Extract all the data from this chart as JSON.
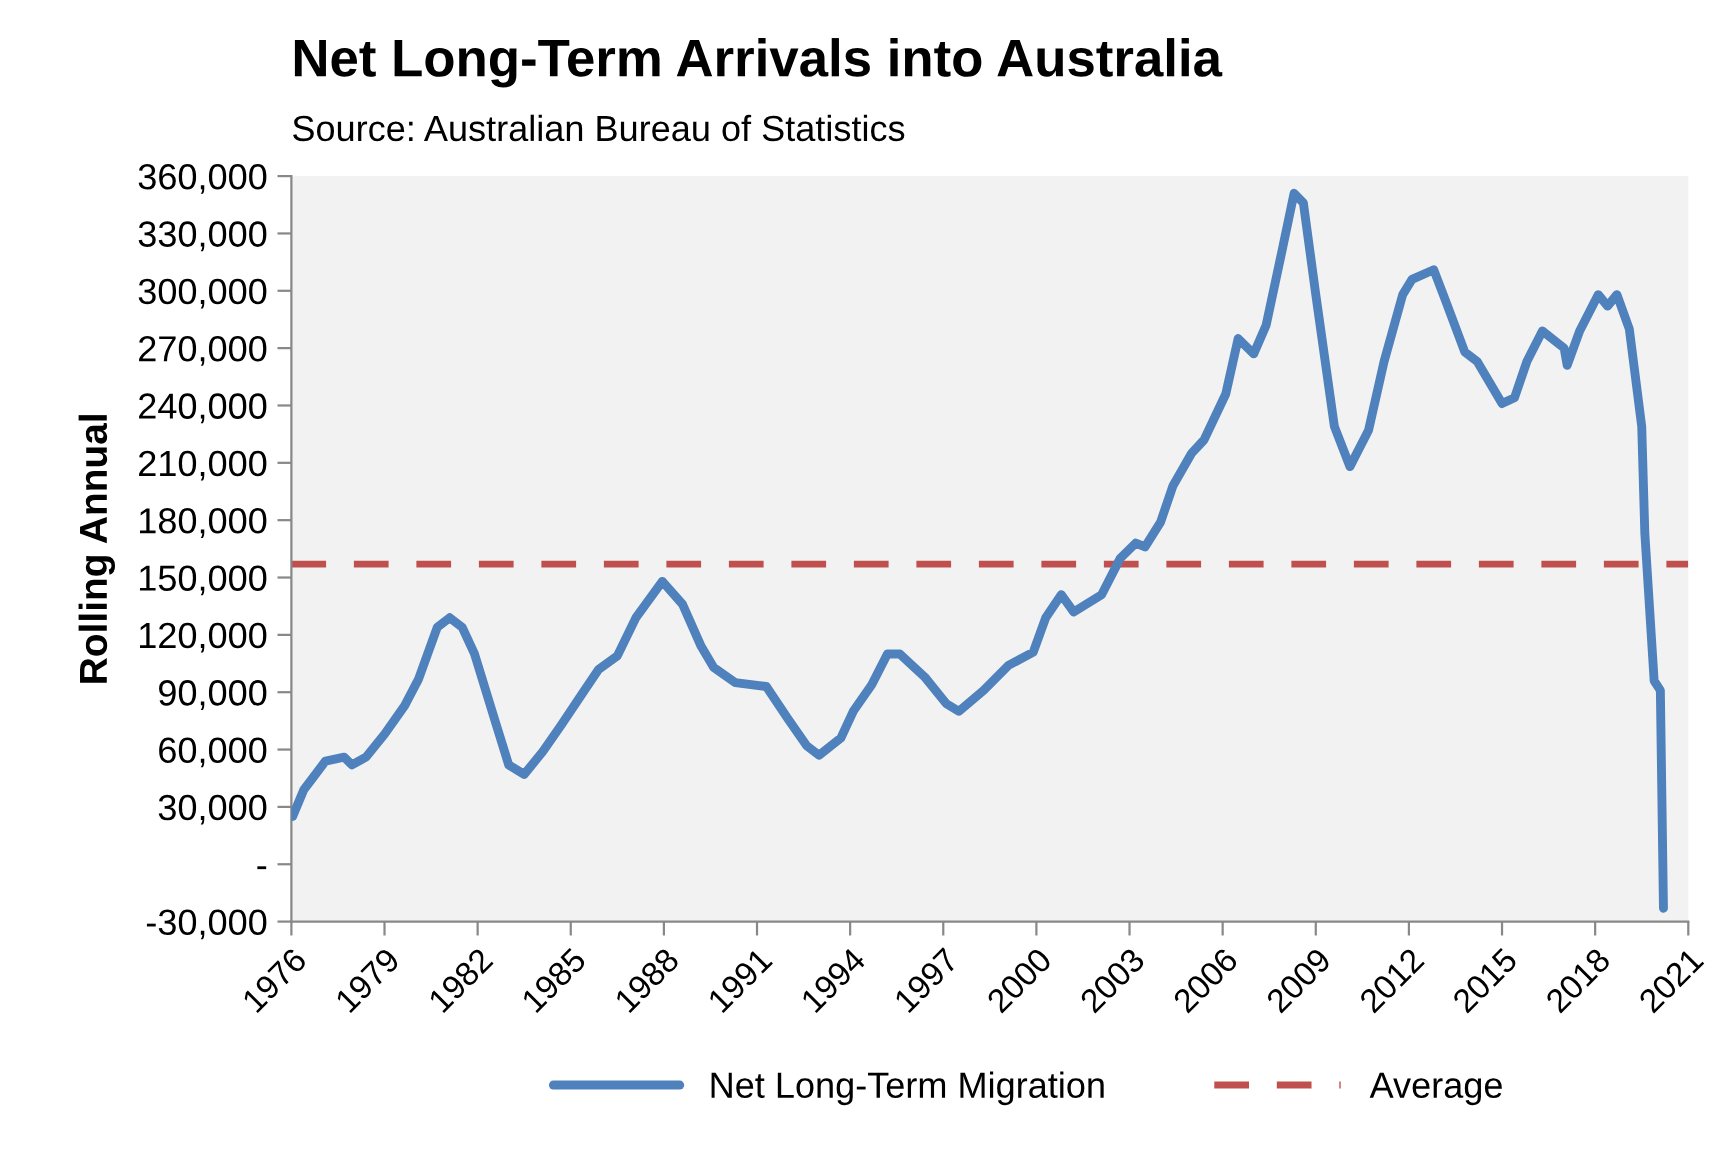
{
  "chart_data": {
    "type": "line",
    "title": "Net Long-Term Arrivals into Australia",
    "subtitle": "Source: Australian Bureau of Statistics",
    "ylabel": "Rolling Annual",
    "series": [
      {
        "name": "Net Long-Term Migration",
        "color": "#4f81bd",
        "x": [
          1976.04,
          1976.4,
          1977.1,
          1977.7,
          1977.95,
          1978.4,
          1979.0,
          1979.65,
          1980.1,
          1980.7,
          1981.1,
          1981.5,
          1981.9,
          1982.6,
          1983.0,
          1983.5,
          1984.1,
          1984.7,
          1985.4,
          1985.9,
          1986.5,
          1987.1,
          1987.95,
          1988.6,
          1989.2,
          1989.6,
          1990.3,
          1991.3,
          1992.0,
          1992.6,
          1993.0,
          1993.7,
          1994.1,
          1994.7,
          1995.2,
          1995.6,
          1996.4,
          1997.1,
          1997.5,
          1998.3,
          1999.1,
          1999.9,
          2000.3,
          2000.8,
          2001.2,
          2002.1,
          2002.7,
          2003.2,
          2003.5,
          2004.0,
          2004.4,
          2005.0,
          2005.4,
          2006.1,
          2006.5,
          2007.0,
          2007.4,
          2007.9,
          2008.3,
          2008.6,
          2009.0,
          2009.6,
          2010.1,
          2010.7,
          2011.2,
          2011.8,
          2012.1,
          2012.8,
          2013.2,
          2013.8,
          2014.2,
          2015.0,
          2015.4,
          2015.8,
          2016.3,
          2017.0,
          2017.1,
          2017.5,
          2018.1,
          2018.4,
          2018.7,
          2019.1,
          2019.5,
          2019.6,
          2019.9,
          2020.1,
          2020.2
        ],
        "values": [
          25000,
          39000,
          54000,
          56000,
          52000,
          56000,
          68000,
          83000,
          97000,
          124000,
          129000,
          124000,
          110000,
          73000,
          52000,
          47000,
          59000,
          73000,
          90000,
          102000,
          109000,
          129000,
          148000,
          136000,
          114000,
          103000,
          95000,
          93000,
          76000,
          62000,
          57000,
          66000,
          80000,
          94000,
          110000,
          110000,
          98000,
          84000,
          80000,
          91000,
          104000,
          111000,
          129000,
          141000,
          132000,
          141000,
          160000,
          168000,
          166000,
          179000,
          198000,
          215000,
          222000,
          246000,
          275000,
          267000,
          282000,
          320000,
          351000,
          346000,
          298000,
          229000,
          208000,
          227000,
          263000,
          298000,
          306000,
          311000,
          294000,
          268000,
          263000,
          241000,
          244000,
          263000,
          279000,
          270000,
          261000,
          279000,
          298000,
          292000,
          298000,
          280000,
          229000,
          173000,
          96000,
          91000,
          -23000
        ]
      }
    ],
    "ref_lines": [
      {
        "axis": "y",
        "value": 157000,
        "label": "Average",
        "color": "#c0504d",
        "line_style": "dashed"
      }
    ],
    "xlim": [
      1976,
      2021
    ],
    "xticks": [
      1976,
      1979,
      1982,
      1985,
      1988,
      1991,
      1994,
      1997,
      2000,
      2003,
      2006,
      2009,
      2012,
      2015,
      2018,
      2021
    ],
    "ylim": [
      -30000,
      360000
    ],
    "yticks": [
      {
        "value": -30000,
        "label": "-30,000"
      },
      {
        "value": 0,
        "label": "-"
      },
      {
        "value": 30000,
        "label": "30,000"
      },
      {
        "value": 60000,
        "label": "60,000"
      },
      {
        "value": 90000,
        "label": "90,000"
      },
      {
        "value": 120000,
        "label": "120,000"
      },
      {
        "value": 150000,
        "label": "150,000"
      },
      {
        "value": 180000,
        "label": "180,000"
      },
      {
        "value": 210000,
        "label": "210,000"
      },
      {
        "value": 240000,
        "label": "240,000"
      },
      {
        "value": 270000,
        "label": "270,000"
      },
      {
        "value": 300000,
        "label": "300,000"
      },
      {
        "value": 330000,
        "label": "330,000"
      },
      {
        "value": 360000,
        "label": "360,000"
      }
    ],
    "grid": false,
    "legend": "bottom",
    "marker": "none",
    "line_style": "solid"
  }
}
